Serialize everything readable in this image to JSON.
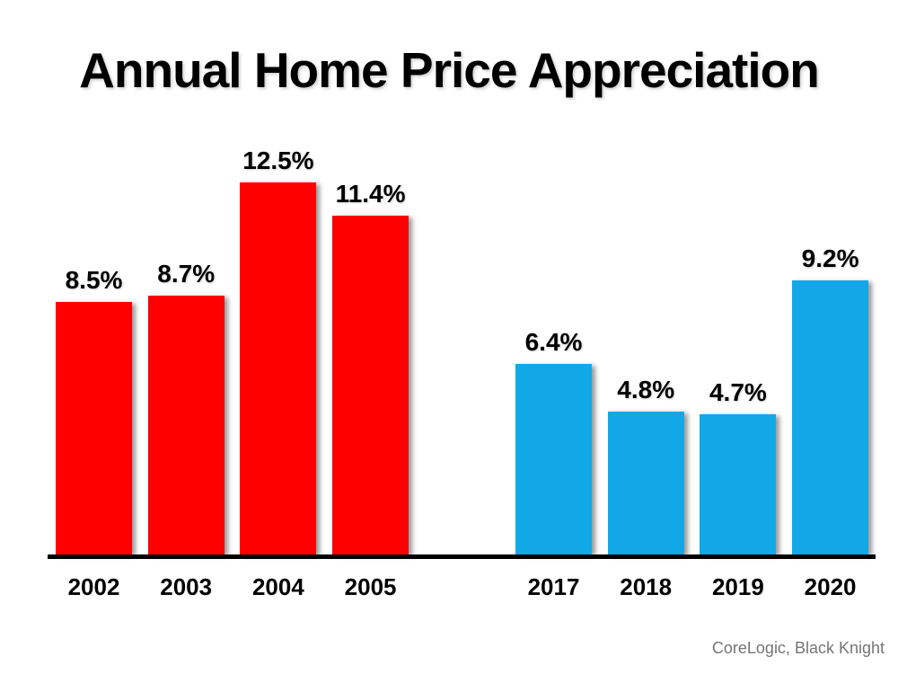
{
  "chart_data": {
    "type": "bar",
    "title": "Annual Home Price Appreciation",
    "source": "CoreLogic, Black Knight",
    "unit": "percent",
    "xlabel": "",
    "ylabel": "",
    "ylim": [
      0,
      13.5
    ],
    "grid": false,
    "legend": "none",
    "value_labels_position": "above-bars",
    "groups": [
      {
        "name": "early-2000s",
        "color": "#FF0000",
        "categories": [
          "2002",
          "2003",
          "2004",
          "2005"
        ],
        "values": [
          8.5,
          8.7,
          12.5,
          11.4
        ],
        "labels": [
          "8.5%",
          "8.7%",
          "12.5%",
          "11.4%"
        ]
      },
      {
        "name": "recent-years",
        "color": "#12A8E8",
        "categories": [
          "2017",
          "2018",
          "2019",
          "2020"
        ],
        "values": [
          6.4,
          4.8,
          4.7,
          9.2
        ],
        "labels": [
          "6.4%",
          "4.8%",
          "4.7%",
          "9.2%"
        ]
      }
    ],
    "colors": {
      "axis": "#000000",
      "value_label_text": "#000000",
      "year_label_text": "#000000",
      "source_text": "#757575",
      "background": "#FFFFFF"
    }
  }
}
